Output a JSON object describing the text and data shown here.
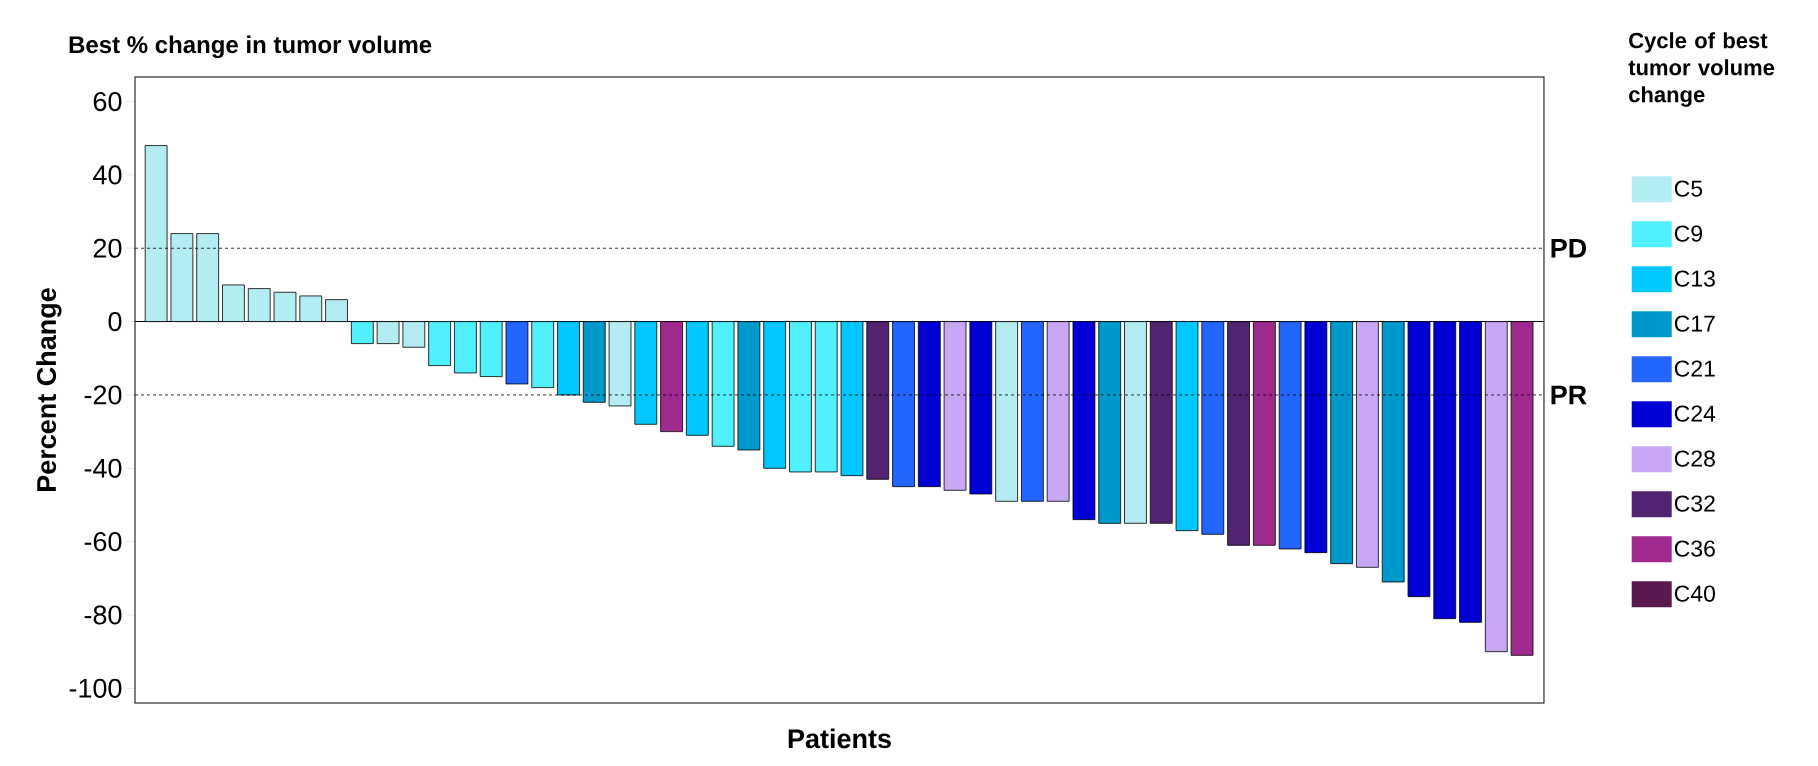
{
  "chart_data": {
    "type": "bar",
    "title": "Best % change in tumor volume",
    "xlabel": "Patients",
    "ylabel": "Percent Change",
    "legend_title": "Cycle of best tumor volume change",
    "categories": [
      null,
      null,
      null,
      null,
      null,
      null,
      null,
      null,
      null,
      null,
      null,
      null,
      null,
      null,
      null,
      null,
      null,
      null,
      null,
      null,
      null,
      null,
      null,
      null,
      null,
      null,
      null,
      null,
      null,
      null,
      null,
      null,
      null,
      null,
      null,
      null,
      null,
      null,
      null,
      null,
      null,
      null,
      null,
      null,
      null,
      null,
      null,
      null,
      null,
      null,
      null,
      null,
      null,
      null
    ],
    "series": [
      {
        "name": "C5",
        "color": "#b4ecf4",
        "values": [
          48,
          24,
          24,
          10,
          9,
          8,
          7,
          6,
          null,
          -6,
          -7,
          null,
          null,
          null,
          null,
          null,
          null,
          null,
          -23,
          null,
          null,
          null,
          null,
          null,
          null,
          null,
          null,
          null,
          null,
          null,
          null,
          null,
          null,
          -49,
          null,
          null,
          null,
          null,
          -55,
          null,
          null,
          null,
          null,
          null,
          null,
          null,
          null,
          null,
          null,
          null,
          null,
          null,
          null,
          null
        ]
      },
      {
        "name": "C9",
        "color": "#50f0ff",
        "values": [
          null,
          null,
          null,
          null,
          null,
          null,
          null,
          null,
          -6,
          null,
          null,
          -12,
          -14,
          -15,
          null,
          -18,
          null,
          null,
          null,
          null,
          null,
          null,
          -34,
          null,
          null,
          -41,
          -41,
          null,
          null,
          null,
          null,
          null,
          null,
          null,
          null,
          null,
          null,
          null,
          null,
          null,
          null,
          null,
          null,
          null,
          null,
          null,
          null,
          null,
          null,
          null,
          null,
          null,
          null,
          null
        ]
      },
      {
        "name": "C13",
        "color": "#00c8ff",
        "values": [
          null,
          null,
          null,
          null,
          null,
          null,
          null,
          null,
          null,
          null,
          null,
          null,
          null,
          null,
          null,
          null,
          -20,
          null,
          null,
          -28,
          null,
          -31,
          null,
          null,
          -40,
          null,
          null,
          -42,
          null,
          null,
          null,
          null,
          null,
          null,
          null,
          null,
          null,
          null,
          null,
          null,
          -57,
          null,
          null,
          null,
          null,
          null,
          null,
          null,
          null,
          null,
          null,
          null,
          null,
          null
        ]
      },
      {
        "name": "C17",
        "color": "#0099cc",
        "values": [
          null,
          null,
          null,
          null,
          null,
          null,
          null,
          null,
          null,
          null,
          null,
          null,
          null,
          null,
          null,
          null,
          null,
          -22,
          null,
          null,
          null,
          null,
          null,
          -35,
          null,
          null,
          null,
          null,
          null,
          null,
          null,
          null,
          null,
          null,
          null,
          null,
          null,
          -55,
          null,
          null,
          null,
          null,
          null,
          null,
          null,
          null,
          -66,
          null,
          -71,
          null,
          null,
          null,
          null,
          null
        ]
      },
      {
        "name": "C21",
        "color": "#2266ff",
        "values": [
          null,
          null,
          null,
          null,
          null,
          null,
          null,
          null,
          null,
          null,
          null,
          null,
          null,
          null,
          -17,
          null,
          null,
          null,
          null,
          null,
          null,
          null,
          null,
          null,
          null,
          null,
          null,
          null,
          null,
          -45,
          null,
          null,
          null,
          null,
          -49,
          null,
          null,
          null,
          null,
          null,
          null,
          -58,
          null,
          null,
          -62,
          null,
          null,
          null,
          null,
          null,
          null,
          null,
          null,
          null
        ]
      },
      {
        "name": "C24",
        "color": "#0000d4",
        "values": [
          null,
          null,
          null,
          null,
          null,
          null,
          null,
          null,
          null,
          null,
          null,
          null,
          null,
          null,
          null,
          null,
          null,
          null,
          null,
          null,
          null,
          null,
          null,
          null,
          null,
          null,
          null,
          null,
          null,
          null,
          -45,
          null,
          -47,
          null,
          null,
          null,
          -54,
          null,
          null,
          null,
          null,
          null,
          null,
          null,
          null,
          -63,
          null,
          null,
          null,
          -75,
          -81,
          -82,
          null,
          null
        ]
      },
      {
        "name": "C28",
        "color": "#c8a8f4",
        "values": [
          null,
          null,
          null,
          null,
          null,
          null,
          null,
          null,
          null,
          null,
          null,
          null,
          null,
          null,
          null,
          null,
          null,
          null,
          null,
          null,
          null,
          null,
          null,
          null,
          null,
          null,
          null,
          null,
          null,
          null,
          null,
          -46,
          null,
          null,
          null,
          -49,
          null,
          null,
          null,
          null,
          null,
          null,
          null,
          null,
          null,
          null,
          null,
          -67,
          null,
          null,
          null,
          null,
          -90,
          null
        ]
      },
      {
        "name": "C32",
        "color": "#512370",
        "values": [
          null,
          null,
          null,
          null,
          null,
          null,
          null,
          null,
          null,
          null,
          null,
          null,
          null,
          null,
          null,
          null,
          null,
          null,
          null,
          null,
          null,
          null,
          null,
          null,
          null,
          null,
          null,
          null,
          -43,
          null,
          null,
          null,
          null,
          null,
          null,
          null,
          null,
          null,
          null,
          -55,
          null,
          null,
          -61,
          null,
          null,
          null,
          null,
          null,
          null,
          null,
          null,
          null,
          null,
          null
        ]
      },
      {
        "name": "C36",
        "color": "#9e2a8e",
        "values": [
          null,
          null,
          null,
          null,
          null,
          null,
          null,
          null,
          null,
          null,
          null,
          null,
          null,
          null,
          null,
          null,
          null,
          null,
          null,
          null,
          -30,
          null,
          null,
          null,
          null,
          null,
          null,
          null,
          null,
          null,
          null,
          null,
          null,
          null,
          null,
          null,
          null,
          null,
          null,
          null,
          null,
          null,
          null,
          -61,
          null,
          null,
          null,
          null,
          null,
          null,
          null,
          null,
          null,
          -91
        ]
      },
      {
        "name": "C40",
        "color": "#5b1a4f",
        "values": [
          null,
          null,
          null,
          null,
          null,
          null,
          null,
          null,
          null,
          null,
          null,
          null,
          null,
          null,
          null,
          null,
          null,
          null,
          null,
          null,
          null,
          null,
          null,
          null,
          null,
          null,
          null,
          null,
          null,
          null,
          null,
          null,
          null,
          null,
          null,
          null,
          null,
          null,
          null,
          null,
          null,
          null,
          null,
          null,
          null,
          null,
          null,
          null,
          null,
          null,
          null,
          null,
          null,
          null
        ]
      }
    ],
    "ylim": [
      -104,
      66.7
    ],
    "yticks": [
      -100,
      -80,
      -60,
      -40,
      -20,
      0,
      20,
      40,
      60
    ],
    "ref_lines": [
      {
        "axis": "y",
        "value": 20,
        "label": "PD",
        "line_style": "dashed"
      },
      {
        "axis": "y",
        "value": -20,
        "label": "PR",
        "line_style": "dashed"
      }
    ],
    "legend": "right"
  }
}
